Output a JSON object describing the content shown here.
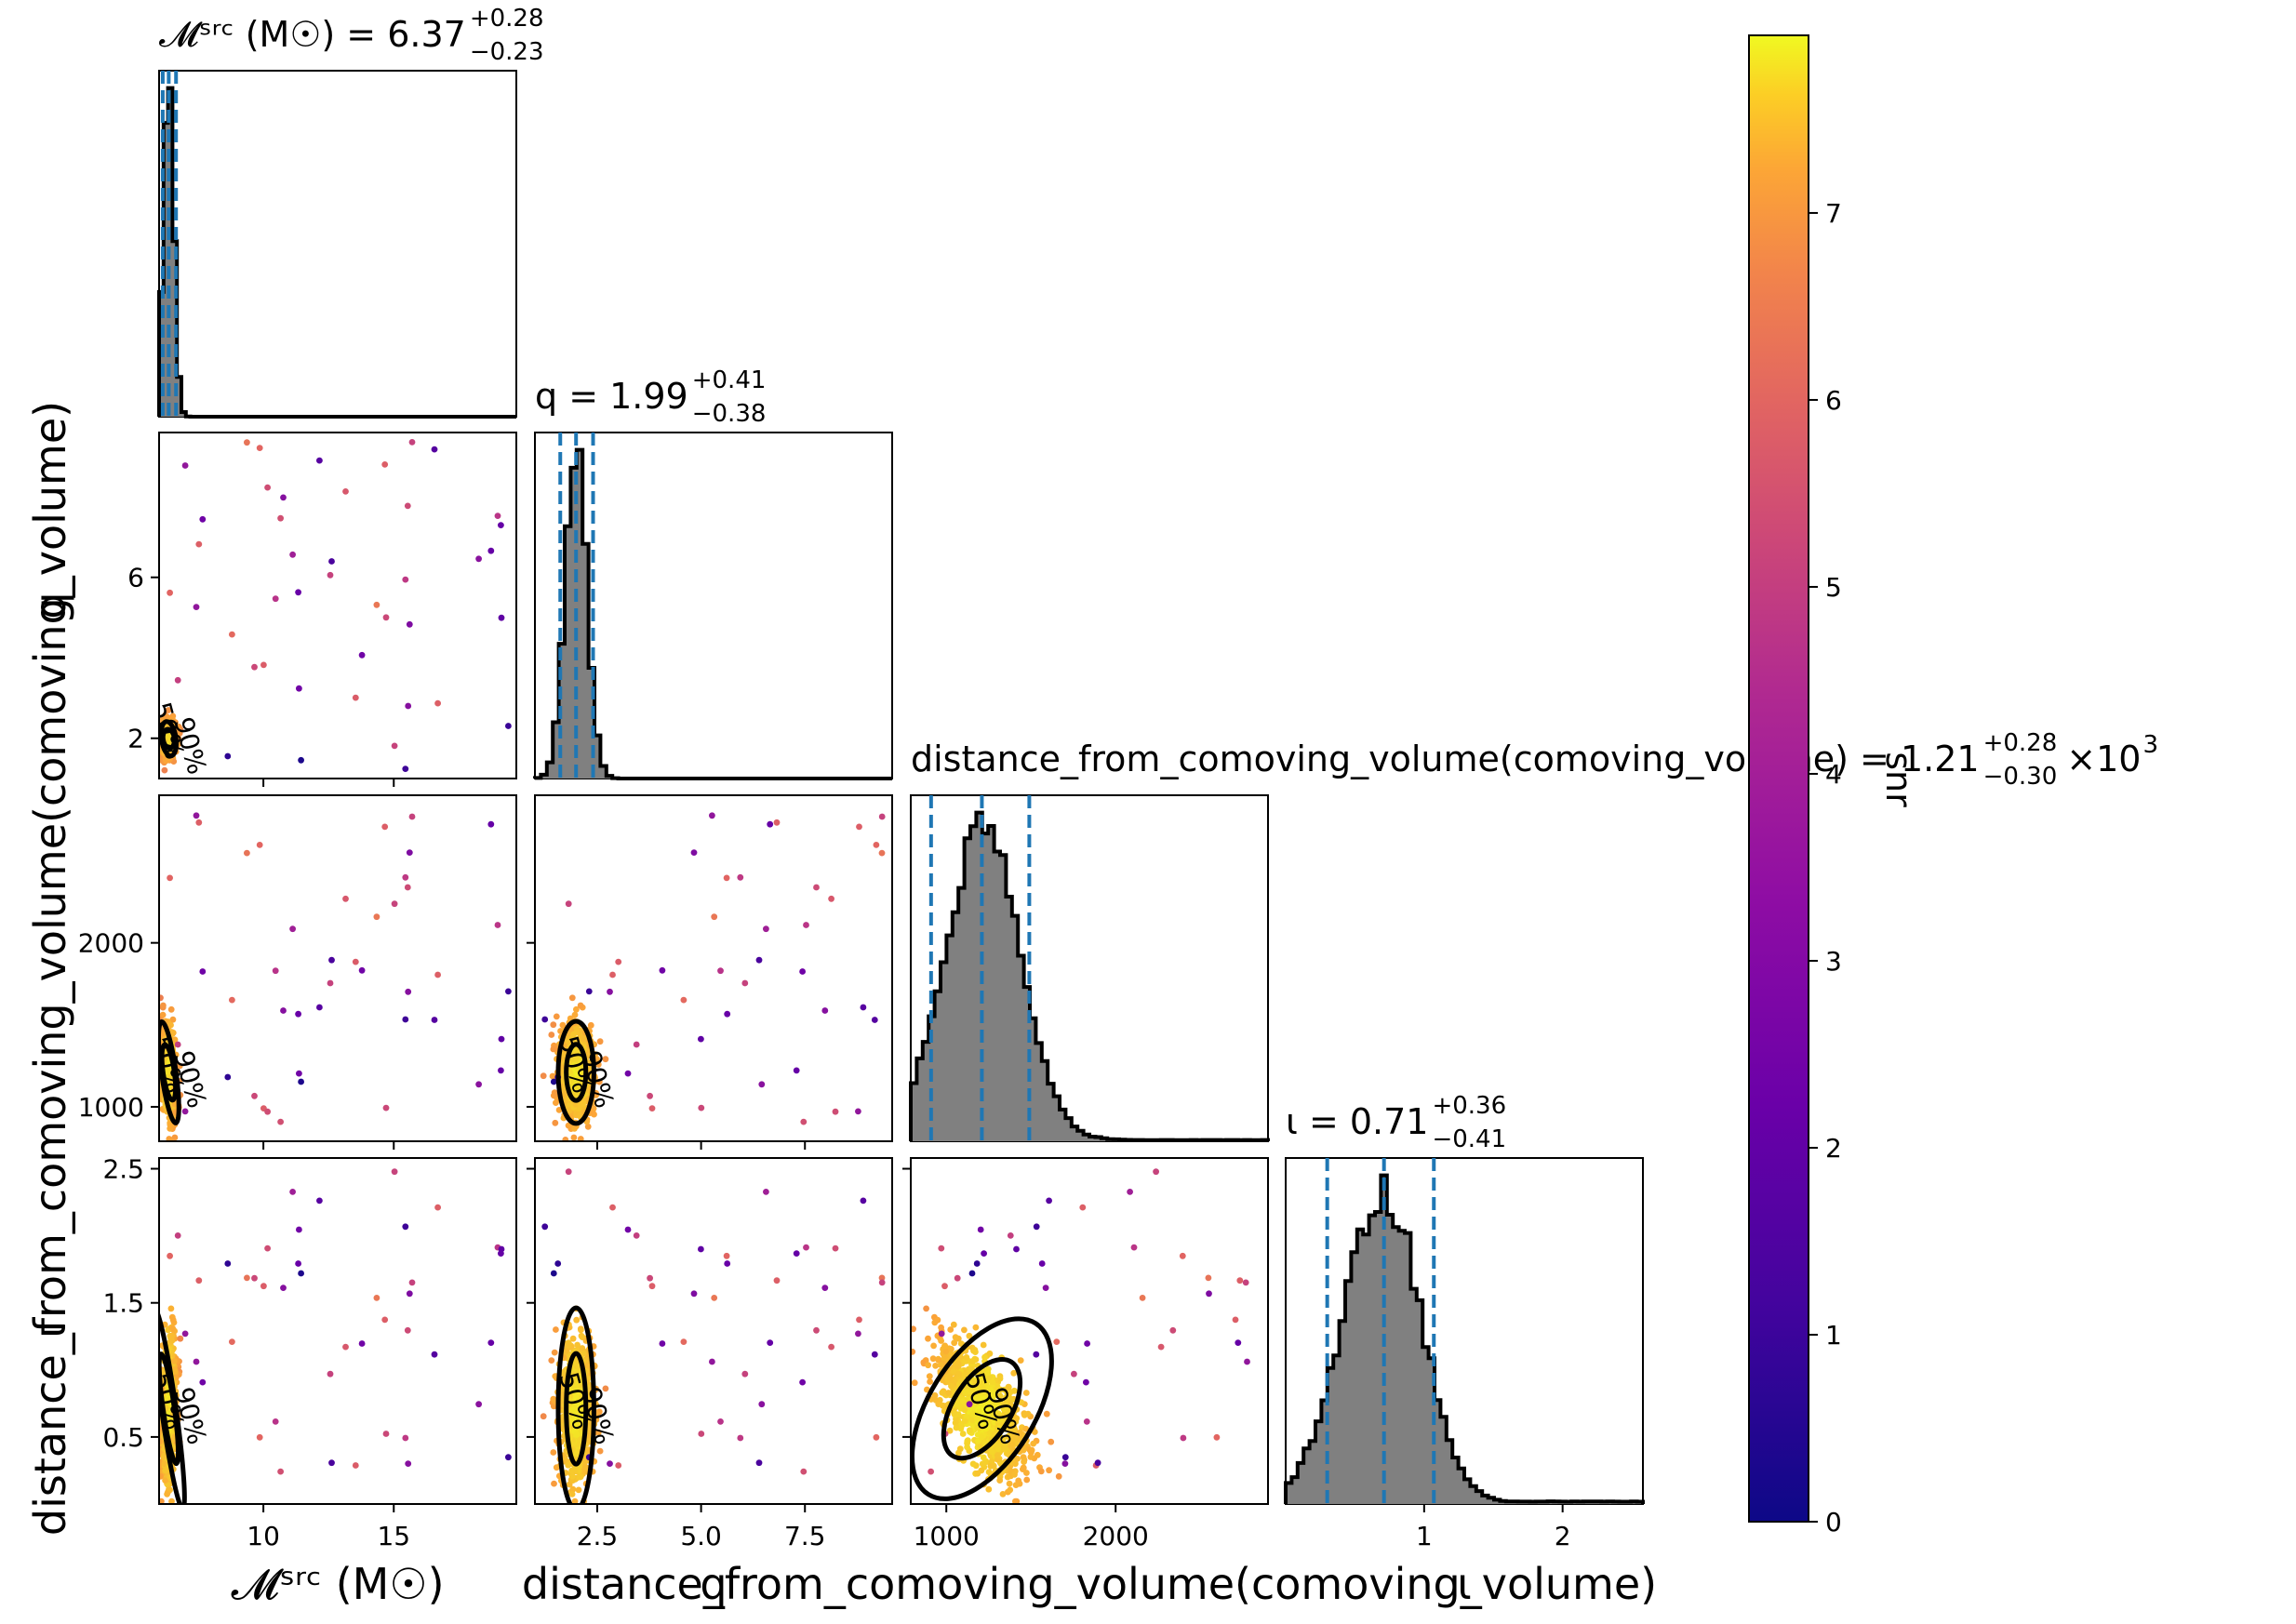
{
  "chart_data": {
    "type": "scatter",
    "title": "",
    "colorbar": {
      "label": "snr",
      "range": [
        0,
        7.95
      ],
      "ticks": [
        "0",
        "1",
        "2",
        "3",
        "4",
        "5",
        "6",
        "7"
      ],
      "colormap": "plasma",
      "colors": [
        "#0d0887",
        "#6a00a8",
        "#b12a90",
        "#e16462",
        "#fca636",
        "#f0f921"
      ]
    },
    "parameters": [
      {
        "key": "mchirp",
        "title_text": "𝓜ˢʳᶜ (M☉) = 6.37",
        "median": 6.37,
        "plus": 0.28,
        "minus": 0.23,
        "plus_text": "+0.28",
        "minus_text": "−0.23",
        "axis_label": "𝓜ˢʳᶜ (M☉)",
        "range": [
          6.0,
          19.7
        ],
        "ticks": [
          10,
          15
        ],
        "tick_labels": [
          "10",
          "15"
        ]
      },
      {
        "key": "q",
        "title_text": "q = 1.99",
        "median": 1.99,
        "plus": 0.41,
        "minus": 0.38,
        "plus_text": "+0.41",
        "minus_text": "−0.38",
        "axis_label": "q",
        "range": [
          1.0,
          9.6
        ],
        "ticks": [
          2.5,
          5.0,
          7.5
        ],
        "tick_labels": [
          "2.5",
          "5.0",
          "7.5"
        ],
        "y_ticks": [
          2,
          6
        ],
        "y_tick_labels": [
          "2",
          "6"
        ]
      },
      {
        "key": "distance",
        "title_text": "distance_from_comoving_volume(comoving_volume) = 1.21",
        "median": 1210,
        "plus": 280,
        "minus": 300,
        "plus_text": "+0.28",
        "minus_text": "−0.30",
        "title_suffix": "×10",
        "title_exponent": "3",
        "axis_label": "distance_from_comoving_volume(comoving_volume)",
        "range": [
          790,
          2900
        ],
        "ticks": [
          1000,
          2000
        ],
        "tick_labels": [
          "1000",
          "2000"
        ]
      },
      {
        "key": "inclination",
        "title_text": "ι = 0.71",
        "median": 0.71,
        "plus": 0.36,
        "minus": 0.41,
        "plus_text": "+0.36",
        "minus_text": "−0.41",
        "axis_label": "ι",
        "range": [
          0.0,
          2.58
        ],
        "ticks": [
          1,
          2
        ],
        "tick_labels": [
          "1",
          "2"
        ],
        "y_ticks": [
          0.5,
          1.5,
          2.5
        ],
        "y_tick_labels": [
          "0.5",
          "1.5",
          "2.5"
        ]
      }
    ],
    "contour_labels": [
      "50%",
      "90%"
    ]
  }
}
